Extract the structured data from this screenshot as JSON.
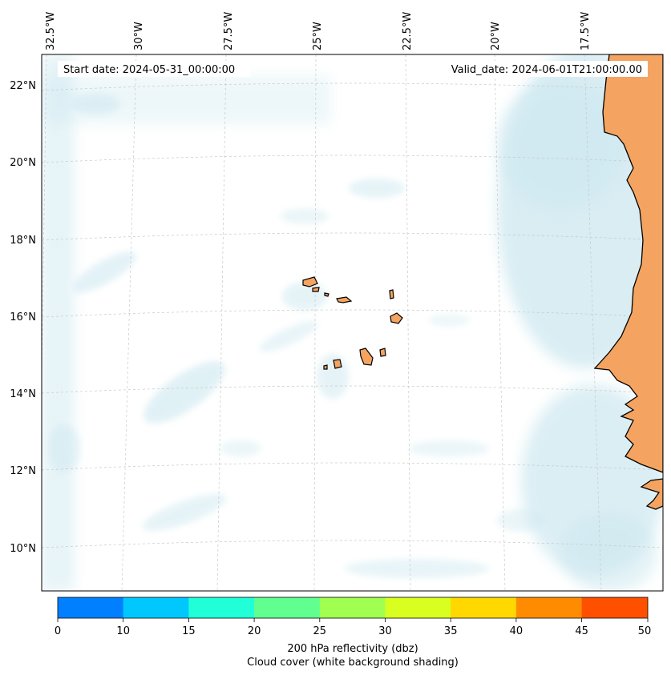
{
  "map": {
    "start_date": "Start date: 2024-05-31_00:00:00",
    "valid_date": "Valid_date: 2024-06-01T21:00:00.00",
    "lon_labels": [
      "32.5°W",
      "30°W",
      "27.5°W",
      "25°W",
      "22.5°W",
      "20°W",
      "17.5°W"
    ],
    "lat_labels": [
      "22°N",
      "20°N",
      "18°N",
      "16°N",
      "14°N",
      "12°N",
      "10°N"
    ],
    "land_color": "#f4a460",
    "cloud_color": "#cde8f0"
  },
  "colorbar": {
    "ticks": [
      "0",
      "10",
      "15",
      "20",
      "25",
      "30",
      "35",
      "40",
      "45",
      "50"
    ],
    "colors": [
      "#0080ff",
      "#00c8ff",
      "#20ffd8",
      "#60ff90",
      "#a0ff50",
      "#d8ff20",
      "#ffd800",
      "#ff8c00",
      "#ff5000"
    ],
    "label_line1": "200 hPa reflectivity (dbz)",
    "label_line2": "Cloud cover (white background shading)"
  }
}
